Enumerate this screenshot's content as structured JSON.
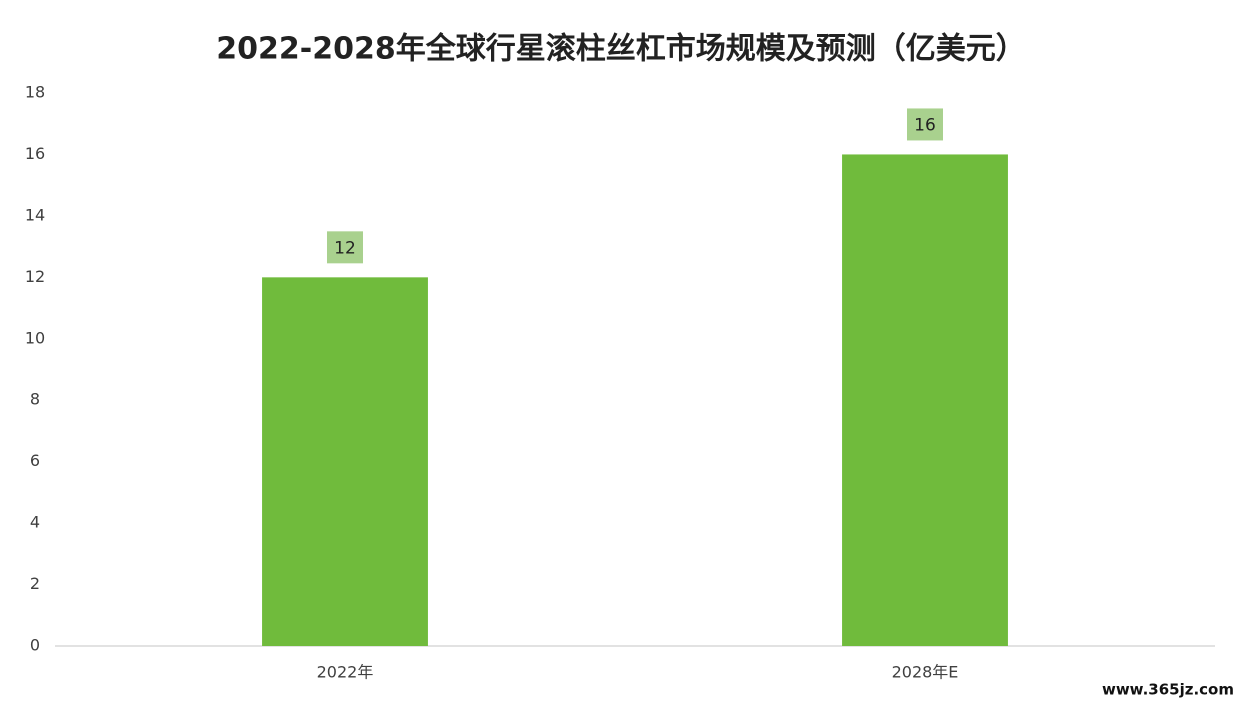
{
  "chart_data": {
    "type": "bar",
    "title": "2022-2028年全球行星滚柱丝杠市场规模及预测（亿美元）",
    "categories": [
      "2022年",
      "2028年E"
    ],
    "values": [
      12,
      16
    ],
    "color": "#70bb3c",
    "ylim": [
      0,
      18
    ],
    "yticks": [
      0,
      2,
      4,
      6,
      8,
      10,
      12,
      14,
      16,
      18
    ],
    "grid": false,
    "watermark": "www.365jz.com"
  }
}
